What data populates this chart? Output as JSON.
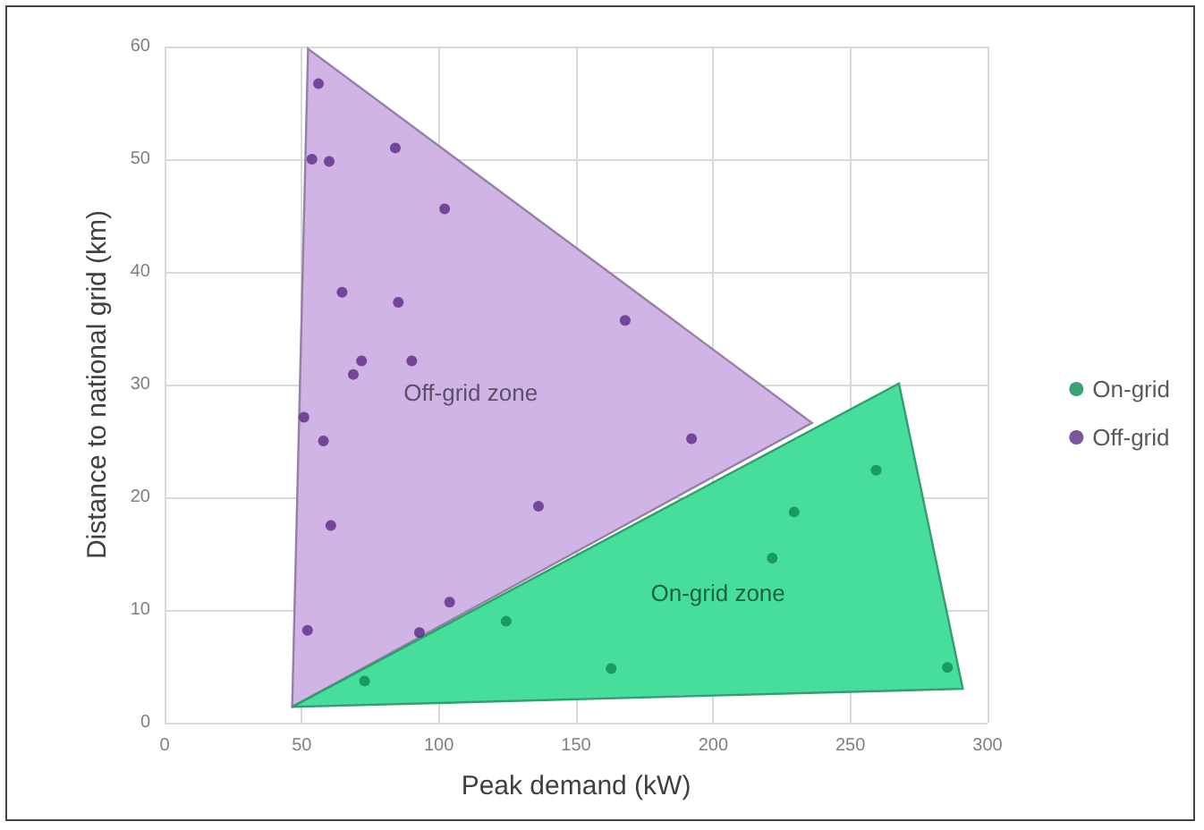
{
  "chart_data": {
    "type": "scatter",
    "xlabel": "Peak demand (kW)",
    "ylabel": "Distance to national grid (km)",
    "xlim": [
      0,
      300
    ],
    "xticks": [
      0,
      50,
      100,
      150,
      200,
      250,
      300
    ],
    "ylim": [
      0,
      60
    ],
    "yticks": [
      0,
      10,
      20,
      30,
      40,
      50,
      60
    ],
    "grid": true,
    "legend": "right",
    "series": [
      {
        "type": "area",
        "name": "Off-grid zone",
        "color": "#cdb0e4",
        "x": [
          52.3,
          46.5,
          236
        ],
        "values": [
          59.8,
          1.4,
          26.6
        ]
      },
      {
        "type": "area",
        "name": "On-grid zone",
        "color": "#3ddc97",
        "x": [
          46.5,
          267.7,
          291
        ],
        "values": [
          1.4,
          30.1,
          3.0
        ]
      },
      {
        "name": "On-grid",
        "color": "#0b8a50",
        "marker": "circle",
        "x": [
          124.5,
          162.8,
          221.5,
          229.5,
          259.4,
          285.4,
          72.9
        ],
        "values": [
          9.0,
          4.8,
          14.6,
          18.7,
          22.4,
          4.9,
          3.7
        ]
      },
      {
        "name": "Off-grid",
        "color": "#5b2a86",
        "marker": "circle",
        "x": [
          56.1,
          53.7,
          60,
          84.1,
          102.1,
          64.7,
          85.2,
          71.8,
          90.1,
          68.8,
          50.8,
          57.9,
          60.6,
          136.3,
          103.9,
          52.1,
          92.9,
          167.9,
          192.1
        ],
        "values": [
          56.7,
          50.0,
          49.8,
          51.0,
          45.6,
          38.2,
          37.3,
          32.1,
          32.1,
          30.9,
          27.1,
          25.0,
          17.5,
          19.2,
          10.7,
          8.2,
          8.0,
          35.7,
          25.2
        ]
      }
    ]
  }
}
